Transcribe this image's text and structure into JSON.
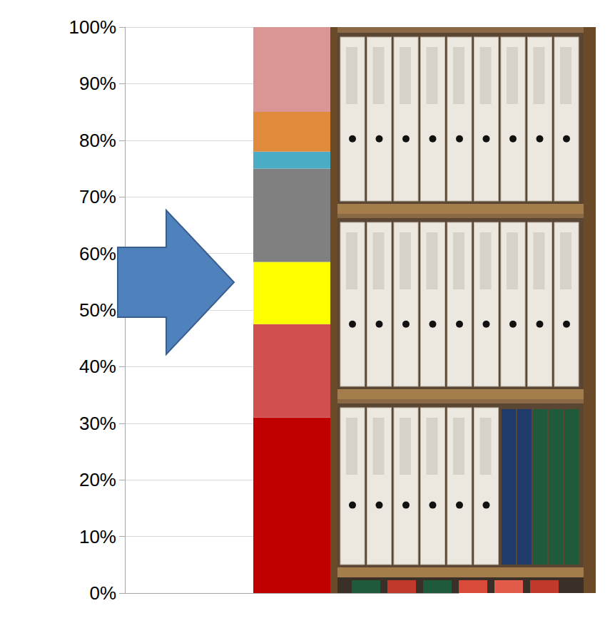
{
  "chart_data": {
    "type": "bar",
    "stacked": true,
    "grid": true,
    "categories": [
      null
    ],
    "series": [
      {
        "color": "#c00000",
        "values": [
          31
        ]
      },
      {
        "color": "#d05050",
        "values": [
          16.5
        ]
      },
      {
        "color": "#ffff00",
        "values": [
          11
        ]
      },
      {
        "color": "#808080",
        "values": [
          16.5
        ]
      },
      {
        "color": "#4bacc6",
        "values": [
          3
        ]
      },
      {
        "color": "#e08a3c",
        "values": [
          7
        ]
      },
      {
        "color": "#da9694",
        "values": [
          15
        ]
      }
    ],
    "ylim": [
      0,
      100
    ],
    "yticks": [
      {
        "value": 0,
        "label": "0%"
      },
      {
        "value": 10,
        "label": "10%"
      },
      {
        "value": 20,
        "label": "20%"
      },
      {
        "value": 30,
        "label": "30%"
      },
      {
        "value": 40,
        "label": "40%"
      },
      {
        "value": 50,
        "label": "50%"
      },
      {
        "value": 60,
        "label": "60%"
      },
      {
        "value": 70,
        "label": "70%"
      },
      {
        "value": 80,
        "label": "80%"
      },
      {
        "value": 90,
        "label": "90%"
      },
      {
        "value": 100,
        "label": "100%"
      }
    ]
  }
}
